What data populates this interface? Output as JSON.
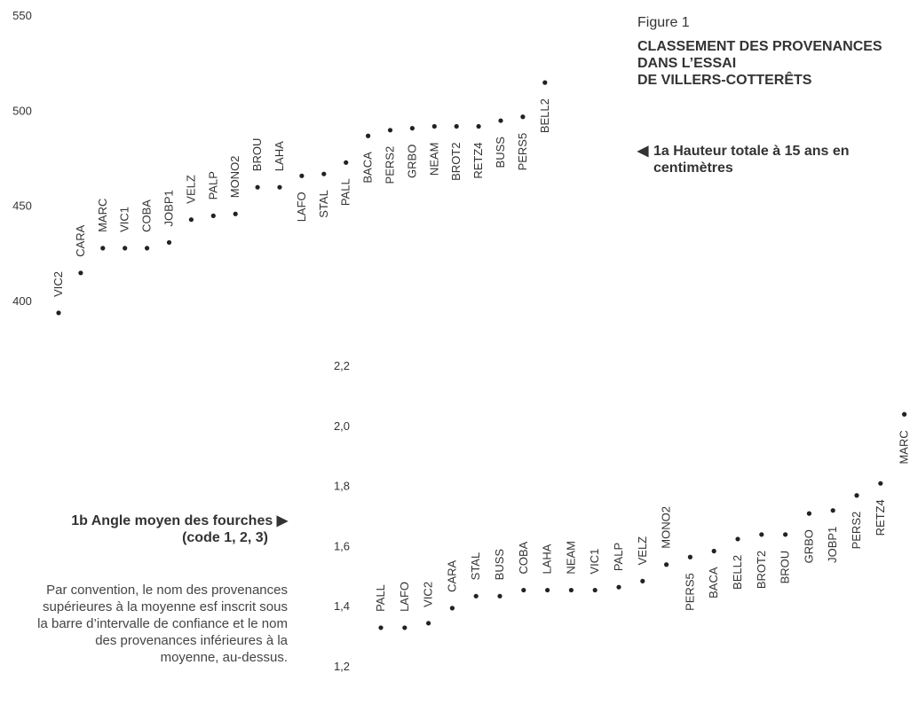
{
  "figure": {
    "label": "Figure 1",
    "title_lines": [
      "CLASSEMENT DES PROVENANCES",
      "DANS L’ESSAI",
      "DE VILLERS-COTTERÊTS"
    ],
    "caption_a": "1a  Hauteur totale à 15 ans en centimètres",
    "caption_b_line1": "1b  Angle moyen des fourches",
    "caption_b_line2": "(code 1, 2, 3)",
    "note": "Par convention, le nom des provenances supérieures à la moyenne esf inscrit sous la barre d’intervalle de confiance et le nom des provenances inférieures à la moyenne, au-dessus.",
    "arrow_left": "◀",
    "arrow_right": "▶"
  },
  "colors": {
    "text": "#333333",
    "point": "#222222"
  },
  "chart_data": [
    {
      "type": "scatter",
      "title": "Hauteur totale à 15 ans en centimètres",
      "ylim": [
        380,
        560
      ],
      "yticks": [
        "550",
        "500",
        "450",
        "400"
      ],
      "ytick_values": [
        550,
        500,
        450,
        400
      ],
      "points": [
        {
          "label": "VIC2",
          "value": 394,
          "side": "above"
        },
        {
          "label": "CARA",
          "value": 415,
          "side": "above"
        },
        {
          "label": "MARC",
          "value": 428,
          "side": "above"
        },
        {
          "label": "VIC1",
          "value": 428,
          "side": "above"
        },
        {
          "label": "COBA",
          "value": 428,
          "side": "above"
        },
        {
          "label": "JOBP1",
          "value": 431,
          "side": "above"
        },
        {
          "label": "VELZ",
          "value": 443,
          "side": "above"
        },
        {
          "label": "PALP",
          "value": 445,
          "side": "above"
        },
        {
          "label": "MONO2",
          "value": 446,
          "side": "above"
        },
        {
          "label": "BROU",
          "value": 460,
          "side": "above"
        },
        {
          "label": "LAHA",
          "value": 460,
          "side": "above"
        },
        {
          "label": "LAFO",
          "value": 466,
          "side": "below"
        },
        {
          "label": "STAL",
          "value": 467,
          "side": "below"
        },
        {
          "label": "PALL",
          "value": 473,
          "side": "below"
        },
        {
          "label": "BACA",
          "value": 487,
          "side": "below"
        },
        {
          "label": "PERS2",
          "value": 490,
          "side": "below"
        },
        {
          "label": "GRBO",
          "value": 491,
          "side": "below"
        },
        {
          "label": "NEAM",
          "value": 492,
          "side": "below"
        },
        {
          "label": "BROT2",
          "value": 492,
          "side": "below"
        },
        {
          "label": "RETZ4",
          "value": 492,
          "side": "below"
        },
        {
          "label": "BUSS",
          "value": 495,
          "side": "below"
        },
        {
          "label": "PERS5",
          "value": 497,
          "side": "below"
        },
        {
          "label": "BELL2",
          "value": 515,
          "side": "below"
        }
      ]
    },
    {
      "type": "scatter",
      "title": "Angle moyen des fourches (code 1, 2, 3)",
      "ylim": [
        1.2,
        2.2
      ],
      "yticks": [
        "2,2",
        "2,0",
        "1,8",
        "1,6",
        "1,4",
        "1,2"
      ],
      "ytick_values": [
        2.2,
        2.0,
        1.8,
        1.6,
        1.4,
        1.2
      ],
      "points": [
        {
          "label": "PALL",
          "value": 1.33,
          "side": "above"
        },
        {
          "label": "LAFO",
          "value": 1.33,
          "side": "above"
        },
        {
          "label": "VIC2",
          "value": 1.345,
          "side": "above"
        },
        {
          "label": "CARA",
          "value": 1.395,
          "side": "above"
        },
        {
          "label": "STAL",
          "value": 1.435,
          "side": "above"
        },
        {
          "label": "BUSS",
          "value": 1.435,
          "side": "above"
        },
        {
          "label": "COBA",
          "value": 1.455,
          "side": "above"
        },
        {
          "label": "LAHA",
          "value": 1.455,
          "side": "above"
        },
        {
          "label": "NEAM",
          "value": 1.455,
          "side": "above"
        },
        {
          "label": "VIC1",
          "value": 1.455,
          "side": "above"
        },
        {
          "label": "PALP",
          "value": 1.465,
          "side": "above"
        },
        {
          "label": "VELZ",
          "value": 1.485,
          "side": "above"
        },
        {
          "label": "MONO2",
          "value": 1.54,
          "side": "above"
        },
        {
          "label": "PERS5",
          "value": 1.565,
          "side": "below"
        },
        {
          "label": "BACA",
          "value": 1.585,
          "side": "below"
        },
        {
          "label": "BELL2",
          "value": 1.625,
          "side": "below"
        },
        {
          "label": "BROT2",
          "value": 1.64,
          "side": "below"
        },
        {
          "label": "BROU",
          "value": 1.64,
          "side": "below"
        },
        {
          "label": "GRBO",
          "value": 1.71,
          "side": "below"
        },
        {
          "label": "JOBP1",
          "value": 1.72,
          "side": "below"
        },
        {
          "label": "PERS2",
          "value": 1.77,
          "side": "below"
        },
        {
          "label": "RETZ4",
          "value": 1.81,
          "side": "below"
        },
        {
          "label": "MARC",
          "value": 2.04,
          "side": "below"
        }
      ]
    }
  ]
}
